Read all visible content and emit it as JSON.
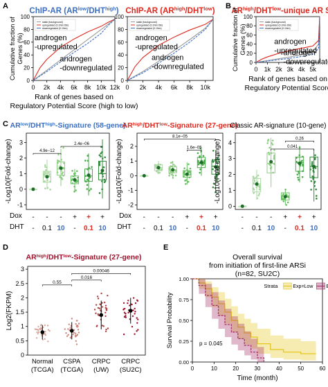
{
  "figure": {
    "panel_letters": [
      "A",
      "B",
      "C",
      "D",
      "E"
    ]
  },
  "colors": {
    "blue": "#3b6fc4",
    "red": "#e0281e",
    "green": "#2e8b3a",
    "light_green": "#a8d8a0",
    "mid_green": "#5cb85c",
    "dark_red": "#a0102a",
    "km_low": "#e5c51f",
    "km_high": "#a6326a",
    "grid": "#999999",
    "text": "#000000"
  },
  "chart_data": [
    {
      "panel": "A-left",
      "type": "line",
      "title_parts": [
        "ChIP-AR (AR",
        "low",
        "/DHT",
        "high",
        ")"
      ],
      "xlabel_lines": [
        "Rank of genes based on",
        "Regulatory Potential Score (high to low)"
      ],
      "ylabel_lines": [
        "Cumulative fraction of",
        "Genes (%)"
      ],
      "xticks": [
        "0",
        "2k",
        "4k",
        "6k",
        "8k",
        "10k",
        "12k"
      ],
      "yticks": [
        "0",
        "20",
        "40",
        "60",
        "80",
        "100"
      ],
      "xlim": [
        0,
        12000
      ],
      "ylim": [
        0,
        100
      ],
      "legend": [
        "static (background)",
        "upregulated (0.1Nm DB)",
        "downregulated (0.1Nm)"
      ],
      "annotations": [
        {
          "lines": [
            "androgen",
            "-upregulated"
          ],
          "color": "#000000",
          "x": 200,
          "y": 63
        },
        {
          "lines": [
            "androgen",
            "-downregulated"
          ],
          "color": "#000000",
          "x": 3900,
          "y": 30
        }
      ],
      "series": [
        {
          "name": "static (background)",
          "color": "#999999",
          "x": [
            0,
            2000,
            4000,
            6000,
            8000,
            10000,
            11000,
            12000
          ],
          "y": [
            0,
            16,
            32,
            48,
            64,
            80,
            88,
            96
          ]
        },
        {
          "name": "upregulated (0.1Nm DB)",
          "color": "#e0281e",
          "x": [
            0,
            1000,
            2000,
            4000,
            6000,
            8000,
            10000,
            11000,
            12000
          ],
          "y": [
            0,
            20,
            33,
            52,
            65,
            76,
            85,
            91,
            96
          ]
        },
        {
          "name": "downregulated (0.1Nm)",
          "color": "#3b6fc4",
          "x": [
            0,
            2000,
            4000,
            6000,
            8000,
            10000,
            11000,
            12000
          ],
          "y": [
            0,
            14,
            29,
            44,
            58,
            74,
            86,
            96
          ]
        }
      ]
    },
    {
      "panel": "A-right",
      "type": "line",
      "title_parts": [
        "ChIP-AR (AR",
        "high",
        "/DHT",
        "low",
        ")"
      ],
      "xlabel_lines": [],
      "ylabel_lines": [],
      "xticks": [
        "0",
        "2k",
        "4k",
        "6k",
        "8k",
        "10k"
      ],
      "yticks": [
        "0",
        "20",
        "40",
        "60",
        "80",
        "100"
      ],
      "xlim": [
        0,
        11000
      ],
      "ylim": [
        0,
        100
      ],
      "legend": [
        "static (background)",
        "upregulated (0.1Nm DB)",
        "downregulated (0.1Nm)"
      ],
      "annotations": [
        {
          "lines": [
            "androgen",
            "-upregulated"
          ],
          "color": "#000000",
          "x": 1000,
          "y": 63
        },
        {
          "lines": [
            "androgen",
            "-downregulated"
          ],
          "color": "#000000",
          "x": 3100,
          "y": 32
        }
      ],
      "series": [
        {
          "name": "static (background)",
          "color": "#999999",
          "x": [
            0,
            2000,
            4000,
            6000,
            8000,
            10000,
            11000
          ],
          "y": [
            0,
            14,
            30,
            47,
            64,
            82,
            96
          ]
        },
        {
          "name": "upregulated (0.1Nm DB)",
          "color": "#e0281e",
          "x": [
            0,
            1000,
            2000,
            4000,
            6000,
            8000,
            10000,
            11000
          ],
          "y": [
            0,
            22,
            36,
            55,
            68,
            79,
            88,
            96
          ]
        },
        {
          "name": "downregulated (0.1Nm)",
          "color": "#3b6fc4",
          "x": [
            0,
            2000,
            4000,
            6000,
            8000,
            10000,
            11000
          ],
          "y": [
            0,
            12,
            27,
            43,
            60,
            80,
            96
          ]
        }
      ]
    },
    {
      "panel": "B",
      "type": "line",
      "title_parts": [
        "AR",
        "high",
        "/DHT",
        "low",
        "-unique AR Sites"
      ],
      "xlabel_lines": [
        "Rank of genes based on",
        "Regulatory Potential Score"
      ],
      "ylabel_lines": [
        "Cumulative fraction of",
        "Genes (%)"
      ],
      "xticks": [
        "0",
        "1k",
        "2k",
        "3k",
        "4k",
        "5k"
      ],
      "yticks": [
        "0",
        "20",
        "40",
        "60",
        "80",
        "100"
      ],
      "xlim": [
        0,
        5600
      ],
      "ylim": [
        0,
        100
      ],
      "legend": [
        "static (background)",
        "upregulated (0.1Nm DB)",
        "downregulated (0.1Nm)"
      ],
      "annotations": [
        {
          "lines": [
            "androgen",
            "-upregulated"
          ],
          "color": "#000000",
          "x": 1600,
          "y": 40
        },
        {
          "lines": [
            "androgen",
            "-downregulated"
          ],
          "color": "#000000",
          "x": 2400,
          "y": 16
        }
      ],
      "series": [
        {
          "name": "static (background)",
          "color": "#999999",
          "x": [
            0,
            1000,
            2000,
            3000,
            4000,
            5000,
            5500,
            5600
          ],
          "y": [
            0,
            4,
            8,
            12,
            17,
            24,
            40,
            100
          ]
        },
        {
          "name": "upregulated (0.1Nm DB)",
          "color": "#e0281e",
          "x": [
            0,
            500,
            1000,
            2000,
            3000,
            4000,
            5000,
            5500,
            5600
          ],
          "y": [
            0,
            7,
            12,
            20,
            26,
            31,
            36,
            48,
            100
          ]
        },
        {
          "name": "downregulated (0.1Nm)",
          "color": "#3b6fc4",
          "x": [
            0,
            1000,
            2000,
            3000,
            4000,
            5000,
            5500,
            5600
          ],
          "y": [
            0,
            3,
            6,
            9,
            13,
            18,
            30,
            100
          ]
        }
      ]
    },
    {
      "panel": "C-left",
      "type": "box",
      "title_parts": [
        "AR",
        "low",
        "/DHT",
        "high",
        "-Signature (58-gene)"
      ],
      "title_color": "#3b6fc4",
      "ylabel": "-Log10(Fold-change)",
      "yticks": [
        "-1",
        "0",
        "1",
        "2",
        "3"
      ],
      "ylim": [
        -1.3,
        3.6
      ],
      "pvalues": [
        {
          "text": "4.9e−12",
          "from": 0,
          "to": 2,
          "y": 2.3
        },
        {
          "text": "2.4e−06",
          "from": 2,
          "to": 5,
          "y": 2.75
        }
      ],
      "groups": [
        {
          "q1": 0,
          "med": 0,
          "q3": 0,
          "lo": 0,
          "hi": 0,
          "mean": 0
        },
        {
          "q1": 0.45,
          "med": 0.8,
          "q3": 1.15,
          "lo": 0,
          "hi": 1.9,
          "mean": 0.8
        },
        {
          "q1": 0.9,
          "med": 1.3,
          "q3": 1.75,
          "lo": 0.2,
          "hi": 2.6,
          "mean": 1.35
        },
        {
          "q1": 0.35,
          "med": 0.6,
          "q3": 0.85,
          "lo": -0.2,
          "hi": 1.3,
          "mean": 0.6
        },
        {
          "q1": 0.5,
          "med": 0.85,
          "q3": 1.3,
          "lo": -0.4,
          "hi": 2.3,
          "mean": 0.9
        },
        {
          "q1": 0.6,
          "med": 1.0,
          "q3": 1.8,
          "lo": -0.6,
          "hi": 3.2,
          "mean": 1.2
        }
      ]
    },
    {
      "panel": "C-mid",
      "type": "box",
      "title_parts": [
        "AR",
        "high",
        "/DHT",
        "low",
        "-Signature (27-gene)"
      ],
      "title_color": "#e0281e",
      "ylabel": "-Log10(Fold-change)",
      "yticks": [
        "-2",
        "-1",
        "0",
        "1",
        "2"
      ],
      "ylim": [
        -2.3,
        2.9
      ],
      "pvalues": [
        {
          "text": "8.1e−05",
          "from": 0,
          "to": 5,
          "y": 2.5
        },
        {
          "text": "1.6e−05",
          "from": 3,
          "to": 4,
          "y": 1.75
        }
      ],
      "groups": [
        {
          "q1": 0,
          "med": 0,
          "q3": 0,
          "lo": 0,
          "hi": 0,
          "mean": 0
        },
        {
          "q1": 0.35,
          "med": 0.55,
          "q3": 0.75,
          "lo": 0.1,
          "hi": 1.0,
          "mean": 0.55
        },
        {
          "q1": 0.2,
          "med": 0.4,
          "q3": 0.6,
          "lo": -0.2,
          "hi": 1.0,
          "mean": 0.4
        },
        {
          "q1": -0.1,
          "med": 0.05,
          "q3": 0.35,
          "lo": -0.6,
          "hi": 0.9,
          "mean": 0.1
        },
        {
          "q1": 0.55,
          "med": 0.9,
          "q3": 1.25,
          "lo": 0.0,
          "hi": 1.8,
          "mean": 0.9
        },
        {
          "q1": 0.1,
          "med": 0.65,
          "q3": 1.0,
          "lo": -1.1,
          "hi": 1.7,
          "mean": 0.6
        }
      ]
    },
    {
      "panel": "C-right",
      "type": "box",
      "title_parts": [
        "Classic AR-signature (10-gene)"
      ],
      "title_color": "#000000",
      "ylabel": "-Log10(Fold-change)",
      "yticks": [
        "0",
        "1",
        "2",
        "3",
        "4"
      ],
      "ylim": [
        -0.2,
        4.6
      ],
      "pvalues": [
        {
          "text": "0.26",
          "from": 3,
          "to": 5,
          "y": 4.1
        },
        {
          "text": "0.041",
          "from": 2,
          "to": 5,
          "y": 3.6
        }
      ],
      "groups": [
        {
          "q1": 0,
          "med": 0,
          "q3": 0,
          "lo": 0,
          "hi": 0,
          "mean": 0
        },
        {
          "q1": 0.9,
          "med": 1.4,
          "q3": 1.75,
          "lo": 0.4,
          "hi": 2.3,
          "mean": 1.4
        },
        {
          "q1": 2.1,
          "med": 2.7,
          "q3": 3.35,
          "lo": 1.2,
          "hi": 4.3,
          "mean": 2.8
        },
        {
          "q1": 0.4,
          "med": 0.65,
          "q3": 0.85,
          "lo": 0.1,
          "hi": 1.0,
          "mean": 0.6
        },
        {
          "q1": 2.2,
          "med": 2.75,
          "q3": 3.1,
          "lo": 1.5,
          "hi": 3.8,
          "mean": 2.7
        },
        {
          "q1": 1.8,
          "med": 2.5,
          "q3": 3.1,
          "lo": 0.3,
          "hi": 3.6,
          "mean": 2.5
        }
      ]
    },
    {
      "panel": "D",
      "type": "scatter",
      "title_parts": [
        "AR",
        "high",
        "/DHT",
        "low",
        "-Signature (27-gene)"
      ],
      "title_color": "#a0102a",
      "ylabel": "Log2(FKPM)",
      "yticks": [
        "0",
        "0.5",
        "1",
        "1.5",
        "2",
        "2.5",
        "3"
      ],
      "ylim": [
        0,
        3.1
      ],
      "categories": [
        "Normal (TCGA)",
        "CSPA (TCGA)",
        "CRPC (UW)",
        "CRPC (SU2C)"
      ],
      "category_lines": [
        [
          "Normal",
          "(TCGA)"
        ],
        [
          "CSPA",
          "(TCGA)"
        ],
        [
          "CRPC",
          "(UW)"
        ],
        [
          "CRPC",
          "(SU2C)"
        ]
      ],
      "means": [
        0.8,
        0.85,
        1.4,
        1.55
      ],
      "sd": [
        0.25,
        0.3,
        0.5,
        0.45
      ],
      "pvalues": [
        {
          "text": "0.55",
          "from": 0,
          "to": 1,
          "y": 2.45
        },
        {
          "text": "0.016",
          "from": 1,
          "to": 2,
          "y": 2.62
        },
        {
          "text": "0.00046",
          "from": 1,
          "to": 3,
          "y": 2.85
        }
      ]
    },
    {
      "panel": "E",
      "type": "line",
      "title_lines": [
        "Overall survival",
        "from initiation of first-line ARSi",
        "(n=82, SU2C)"
      ],
      "xlabel": "Time (month)",
      "ylabel": "Survival Probability",
      "xticks": [
        "0",
        "10",
        "20",
        "30",
        "40",
        "50",
        "60"
      ],
      "yticks": [
        "0.00",
        "0.25",
        "0.50",
        "0.75",
        "1.00"
      ],
      "xlim": [
        0,
        60
      ],
      "ylim": [
        0,
        1
      ],
      "legend_title": "Strata",
      "legend": [
        "Exp=Low",
        "Exp=High"
      ],
      "annotation": "p = 0.045",
      "series": [
        {
          "name": "Exp=Low",
          "color": "#e5c51f",
          "x": [
            0,
            3,
            6,
            9,
            12,
            15,
            18,
            21,
            24,
            27,
            30,
            36,
            42,
            50,
            57
          ],
          "y": [
            1,
            0.95,
            0.88,
            0.78,
            0.7,
            0.6,
            0.5,
            0.42,
            0.35,
            0.3,
            0.22,
            0.15,
            0.12,
            0.1,
            0.1
          ],
          "ci_low": [
            1,
            0.88,
            0.78,
            0.66,
            0.56,
            0.46,
            0.36,
            0.28,
            0.21,
            0.16,
            0.1,
            0.05,
            0.03,
            0.02,
            0.02
          ],
          "ci_high": [
            1,
            1,
            0.97,
            0.9,
            0.84,
            0.76,
            0.67,
            0.58,
            0.52,
            0.47,
            0.4,
            0.32,
            0.28,
            0.25,
            0.25
          ]
        },
        {
          "name": "Exp=High",
          "color": "#a6326a",
          "x": [
            0,
            3,
            6,
            9,
            12,
            15,
            18,
            21,
            24,
            27,
            30,
            33
          ],
          "y": [
            1,
            0.92,
            0.8,
            0.68,
            0.56,
            0.45,
            0.36,
            0.28,
            0.2,
            0.12,
            0.05,
            0.0
          ],
          "ci_low": [
            1,
            0.82,
            0.66,
            0.52,
            0.4,
            0.3,
            0.21,
            0.14,
            0.08,
            0.03,
            0.0,
            0.0
          ],
          "ci_high": [
            1,
            1,
            0.94,
            0.84,
            0.74,
            0.64,
            0.55,
            0.46,
            0.37,
            0.28,
            0.18,
            0.1
          ]
        }
      ]
    }
  ],
  "c_treatments": {
    "dox_label": "Dox",
    "dht_label": "DHT",
    "dox": [
      "-",
      "-",
      "-",
      "+",
      "+",
      "+"
    ],
    "dht": [
      "-",
      "0.1",
      "10",
      "-",
      "0.1",
      "10"
    ]
  }
}
